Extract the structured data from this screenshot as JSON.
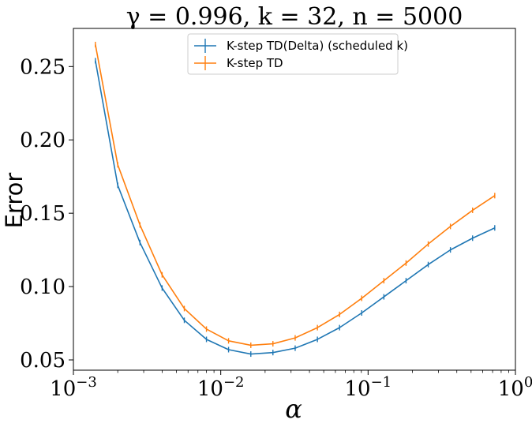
{
  "chart_data": {
    "type": "line",
    "title": "γ = 0.996, k = 32, n = 5000",
    "xlabel": "α",
    "ylabel": "Error",
    "x_scale": "log",
    "xlim": [
      0.001,
      1
    ],
    "ylim": [
      0.043,
      0.276
    ],
    "x_ticks": [
      {
        "value": 0.001,
        "base": "10",
        "exp": "−3"
      },
      {
        "value": 0.01,
        "base": "10",
        "exp": "−2"
      },
      {
        "value": 0.1,
        "base": "10",
        "exp": "−1"
      },
      {
        "value": 1,
        "base": "10",
        "exp": "0"
      }
    ],
    "y_ticks": [
      {
        "value": 0.05,
        "label": "0.05"
      },
      {
        "value": 0.1,
        "label": "0.10"
      },
      {
        "value": 0.15,
        "label": "0.15"
      },
      {
        "value": 0.2,
        "label": "0.20"
      },
      {
        "value": 0.25,
        "label": "0.25"
      }
    ],
    "grid": false,
    "legend_position": "top-center",
    "x": [
      0.00141,
      0.002,
      0.00283,
      0.004,
      0.00566,
      0.008,
      0.0113,
      0.016,
      0.0226,
      0.032,
      0.0453,
      0.064,
      0.0905,
      0.128,
      0.181,
      0.256,
      0.362,
      0.512,
      0.724
    ],
    "series": [
      {
        "name": "K-step TD(Delta) (scheduled k)",
        "color": "#1f77b4",
        "values": [
          0.254,
          0.169,
          0.13,
          0.099,
          0.077,
          0.064,
          0.057,
          0.054,
          0.055,
          0.058,
          0.064,
          0.072,
          0.082,
          0.093,
          0.104,
          0.115,
          0.125,
          0.133,
          0.14
        ]
      },
      {
        "name": "K-step TD",
        "color": "#ff7f0e",
        "values": [
          0.265,
          0.183,
          0.142,
          0.108,
          0.085,
          0.071,
          0.063,
          0.06,
          0.061,
          0.065,
          0.072,
          0.081,
          0.092,
          0.104,
          0.116,
          0.129,
          0.141,
          0.152,
          0.162
        ]
      }
    ]
  }
}
